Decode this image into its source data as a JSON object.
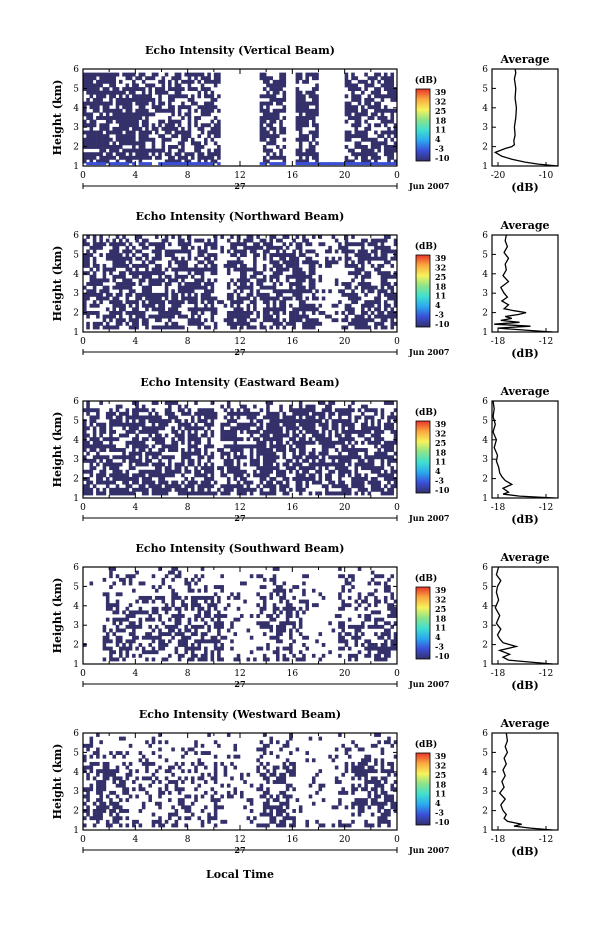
{
  "chart_data": {
    "type": "heatmap",
    "panels": [
      {
        "title": "Echo Intensity (Vertical Beam)",
        "beam": "vertical"
      },
      {
        "title": "Echo Intensity (Northward Beam)",
        "beam": "north"
      },
      {
        "title": "Echo Intensity (Eastward Beam)",
        "beam": "east"
      },
      {
        "title": "Echo Intensity (Southward Beam)",
        "beam": "south"
      },
      {
        "title": "Echo Intensity (Westward Beam)",
        "beam": "west"
      }
    ],
    "ylabel": "Height (km)",
    "xlabel": "Local Time",
    "x_ticks": [
      "0",
      "4",
      "8",
      "12",
      "16",
      "20",
      "0"
    ],
    "x_range_hours": [
      0,
      24
    ],
    "y_ticks": [
      "1",
      "2",
      "3",
      "4",
      "5",
      "6"
    ],
    "ylim": [
      1,
      6
    ],
    "date_day": "27",
    "date_month": "Jun 2007",
    "colorbar": {
      "label": "(dB)",
      "ticks": [
        "39",
        "32",
        "25",
        "18",
        "11",
        "4",
        "-3",
        "-10"
      ],
      "range": [
        -10,
        39
      ],
      "colors": [
        "#34306a",
        "#3a4fd8",
        "#2ba9f0",
        "#40e0d0",
        "#8ce38a",
        "#f7f25c",
        "#fba940",
        "#e8342a"
      ]
    },
    "average_profiles": [
      {
        "title": "Average",
        "xlim": [
          -20,
          -10
        ],
        "x_ticks": [
          "-20",
          "-10"
        ],
        "heights": [
          1.0,
          1.1,
          1.2,
          1.35,
          1.5,
          1.7,
          1.9,
          2.0,
          2.1,
          2.3,
          2.6,
          3.0,
          3.5,
          4.0,
          4.5,
          5.0,
          5.5,
          5.8,
          6.0
        ],
        "values": [
          -10,
          -13,
          -15,
          -17,
          -18.5,
          -19.5,
          -18,
          -17,
          -16.6,
          -16.7,
          -16.5,
          -16.6,
          -16.4,
          -16.3,
          -16.5,
          -16.4,
          -16.6,
          -16.4,
          -16.5
        ]
      },
      {
        "title": "Average",
        "xlim": [
          -18,
          -12
        ],
        "x_ticks": [
          "-18",
          "-12"
        ],
        "heights": [
          1.0,
          1.1,
          1.2,
          1.3,
          1.4,
          1.5,
          1.6,
          1.7,
          1.8,
          1.9,
          2.0,
          2.1,
          2.2,
          2.4,
          2.6,
          2.8,
          3.0,
          3.3,
          3.6,
          3.9,
          4.2,
          4.5,
          4.8,
          5.1,
          5.4,
          5.7,
          6.0
        ],
        "values": [
          -12.5,
          -15,
          -17.5,
          -14.5,
          -17.8,
          -15.5,
          -17.2,
          -16.2,
          -16.8,
          -15.6,
          -14.9,
          -16,
          -16.9,
          -16.5,
          -17.1,
          -16.6,
          -16.9,
          -17.2,
          -16.5,
          -17,
          -16.7,
          -16.8,
          -16.5,
          -16.9,
          -16.6,
          -16.8,
          -16.7
        ]
      },
      {
        "title": "Average",
        "xlim": [
          -18,
          -12
        ],
        "x_ticks": [
          "-18",
          "-12"
        ],
        "heights": [
          1.0,
          1.1,
          1.2,
          1.3,
          1.5,
          1.7,
          1.9,
          2.1,
          2.3,
          2.6,
          2.9,
          3.2,
          3.6,
          4.0,
          4.4,
          4.8,
          5.2,
          5.6,
          6.0
        ],
        "values": [
          -12.3,
          -15.5,
          -17,
          -16.5,
          -17,
          -16.2,
          -16.8,
          -17.1,
          -17.3,
          -17.4,
          -17.6,
          -17.5,
          -17.8,
          -17.6,
          -17.9,
          -17.7,
          -17.9,
          -17.8,
          -17.9
        ]
      },
      {
        "title": "Average",
        "xlim": [
          -18,
          -12
        ],
        "x_ticks": [
          "-18",
          "-12"
        ],
        "heights": [
          1.0,
          1.1,
          1.2,
          1.35,
          1.5,
          1.7,
          1.9,
          2.0,
          2.1,
          2.3,
          2.5,
          2.8,
          3.1,
          3.5,
          3.9,
          4.3,
          4.7,
          5.0,
          5.3,
          5.6,
          6.0
        ],
        "values": [
          -12.5,
          -14.5,
          -16.5,
          -17,
          -16.4,
          -17.3,
          -15.8,
          -16.4,
          -17,
          -17.3,
          -17.5,
          -17.2,
          -17.6,
          -17.3,
          -17.7,
          -17.4,
          -17.6,
          -17.5,
          -17.2,
          -17.6,
          -17.4
        ]
      },
      {
        "title": "Average",
        "xlim": [
          -18,
          -12
        ],
        "x_ticks": [
          "-18",
          "-12"
        ],
        "heights": [
          1.0,
          1.1,
          1.2,
          1.3,
          1.45,
          1.6,
          1.8,
          2.0,
          2.3,
          2.6,
          2.9,
          3.2,
          3.5,
          3.8,
          4.1,
          4.4,
          4.7,
          5.0,
          5.3,
          5.6,
          6.0
        ],
        "values": [
          -12.5,
          -14.5,
          -16,
          -15.3,
          -16.6,
          -16.9,
          -16.7,
          -17,
          -17.2,
          -16.8,
          -17.3,
          -16.9,
          -17.1,
          -16.8,
          -17,
          -16.7,
          -16.9,
          -16.6,
          -16.8,
          -16.6,
          -16.7
        ]
      }
    ]
  }
}
